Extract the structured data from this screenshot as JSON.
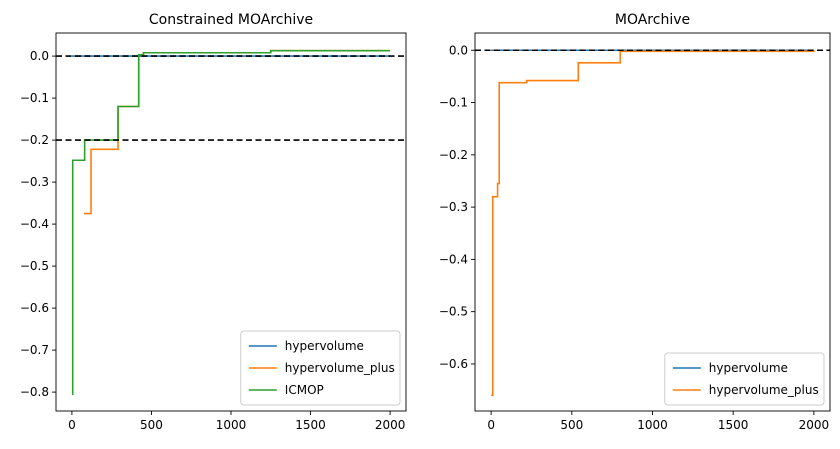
{
  "chart_data": [
    {
      "type": "line",
      "title": "Constrained MOArchive",
      "xlabel": "",
      "ylabel": "",
      "xlim": [
        -100,
        2100
      ],
      "ylim": [
        -0.845,
        0.055
      ],
      "xticks": [
        0,
        500,
        1000,
        1500,
        2000
      ],
      "yticks": [
        0.0,
        -0.1,
        -0.2,
        -0.3,
        -0.4,
        -0.5,
        -0.6,
        -0.7,
        -0.8
      ],
      "hlines": [
        0.0,
        -0.2
      ],
      "hline_color": "#000000",
      "legend": "lower-right",
      "grid": false,
      "step": true,
      "series": [
        {
          "name": "hypervolume",
          "color": "#1f77b4",
          "x": [
            0,
            100,
            200,
            300,
            420,
            2000
          ],
          "y": [
            0.0,
            0.0,
            0.0,
            0.0,
            0.0,
            0.0
          ]
        },
        {
          "name": "hypervolume_plus",
          "color": "#ff7f0e",
          "x": [
            75,
            120,
            290,
            420,
            450,
            1250,
            2000
          ],
          "y": [
            -0.375,
            -0.222,
            -0.12,
            0.003,
            0.008,
            0.013,
            0.013
          ]
        },
        {
          "name": "ICMOP",
          "color": "#2ca02c",
          "x": [
            0,
            5,
            80,
            290,
            420,
            450,
            1250,
            2000
          ],
          "y": [
            -0.805,
            -0.248,
            -0.2,
            -0.12,
            0.003,
            0.008,
            0.013,
            0.013
          ]
        }
      ]
    },
    {
      "type": "line",
      "title": "MOArchive",
      "xlabel": "",
      "ylabel": "",
      "xlim": [
        -100,
        2100
      ],
      "ylim": [
        -0.69,
        0.033
      ],
      "xticks": [
        0,
        500,
        1000,
        1500,
        2000
      ],
      "yticks": [
        0.0,
        -0.1,
        -0.2,
        -0.3,
        -0.4,
        -0.5,
        -0.6
      ],
      "hlines": [
        0.0
      ],
      "hline_color": "#000000",
      "legend": "lower-right",
      "grid": false,
      "step": true,
      "series": [
        {
          "name": "hypervolume",
          "color": "#1f77b4",
          "x": [
            0,
            2000
          ],
          "y": [
            0.0,
            0.0
          ]
        },
        {
          "name": "hypervolume_plus",
          "color": "#ff7f0e",
          "x": [
            0,
            10,
            40,
            50,
            220,
            540,
            800,
            2000
          ],
          "y": [
            -0.66,
            -0.28,
            -0.255,
            -0.062,
            -0.058,
            -0.024,
            -0.002,
            0.0
          ]
        }
      ]
    }
  ]
}
